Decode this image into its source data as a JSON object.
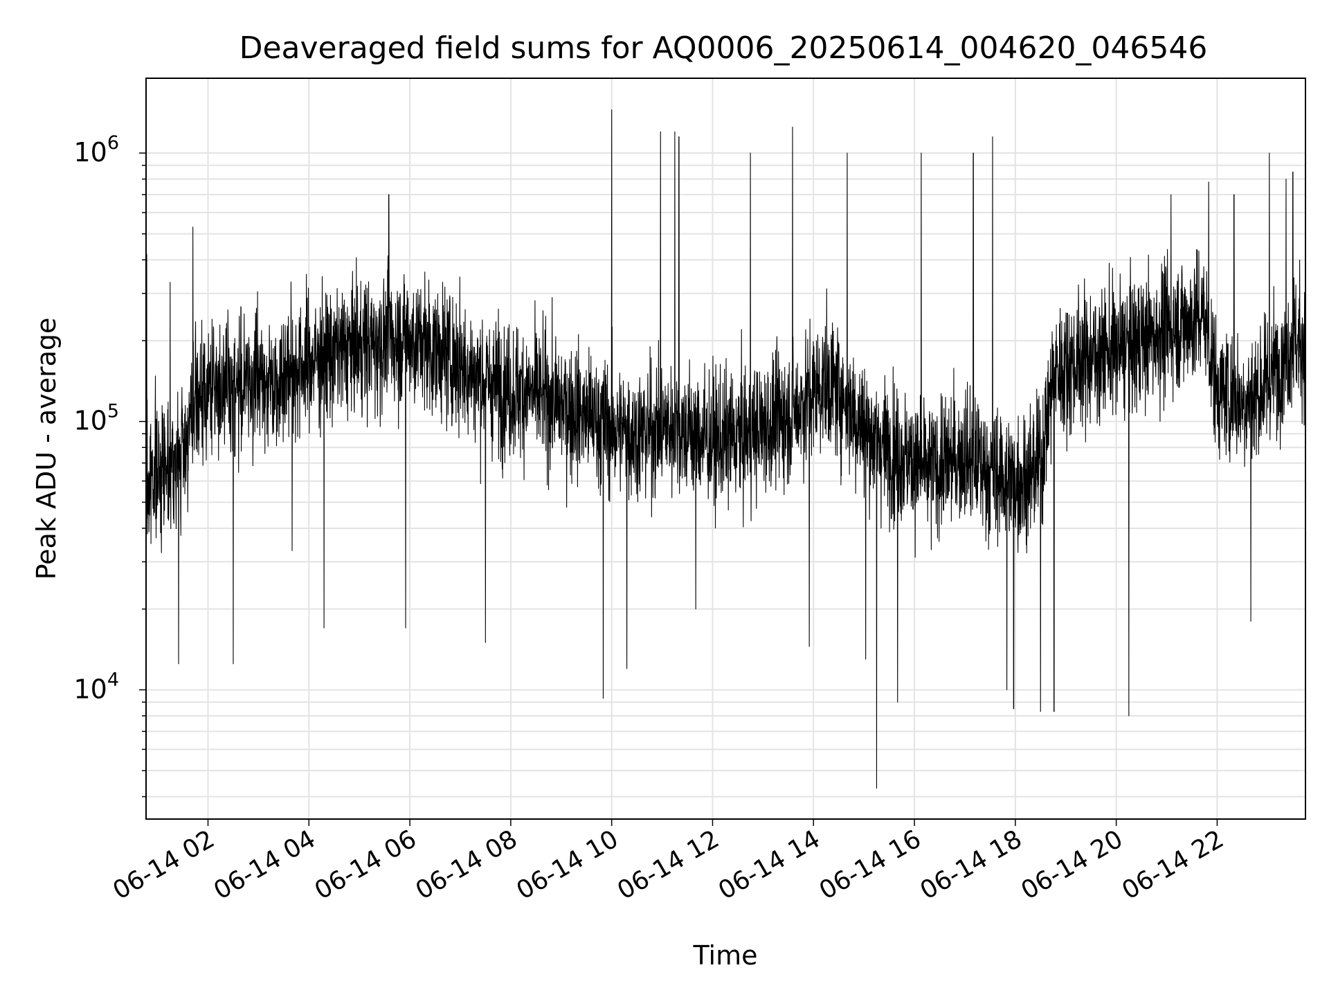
{
  "chart_data": {
    "type": "line",
    "title": "Deaveraged field sums for AQ0006_20250614_004620_046546",
    "xlabel": "Time",
    "ylabel": "Peak ADU - average",
    "yscale": "log",
    "ylim": [
      3300,
      1900000
    ],
    "xlim": [
      "2025-06-14 00:46:20",
      "2025-06-14 23:45:00"
    ],
    "grid": true,
    "line_color": "#000000",
    "x_ticks": [
      "06-14 02",
      "06-14 04",
      "06-14 06",
      "06-14 08",
      "06-14 10",
      "06-14 12",
      "06-14 14",
      "06-14 16",
      "06-14 18",
      "06-14 20",
      "06-14 22"
    ],
    "y_ticks": [
      {
        "value": 10000,
        "base": "10",
        "exp": "4"
      },
      {
        "value": 100000,
        "base": "10",
        "exp": "5"
      },
      {
        "value": 1000000,
        "base": "10",
        "exp": "6"
      }
    ],
    "series": [
      {
        "values": [
          [
            "2025-06-14 00:46",
            65000
          ],
          [
            "2025-06-14 00:50",
            55000
          ],
          [
            "2025-06-14 00:55",
            70000
          ],
          [
            "2025-06-14 01:00",
            60000
          ],
          [
            "2025-06-14 01:10",
            75000
          ],
          [
            "2025-06-14 01:20",
            65000
          ],
          [
            "2025-06-14 01:30",
            80000
          ],
          [
            "2025-06-14 01:40",
            100000
          ],
          [
            "2025-06-14 01:50",
            120000
          ],
          [
            "2025-06-14 02:00",
            130000
          ],
          [
            "2025-06-14 02:15",
            140000
          ],
          [
            "2025-06-14 02:30",
            135000
          ],
          [
            "2025-06-14 02:45",
            140000
          ],
          [
            "2025-06-14 03:00",
            145000
          ],
          [
            "2025-06-14 03:15",
            140000
          ],
          [
            "2025-06-14 03:30",
            150000
          ],
          [
            "2025-06-14 03:45",
            160000
          ],
          [
            "2025-06-14 04:00",
            165000
          ],
          [
            "2025-06-14 04:15",
            175000
          ],
          [
            "2025-06-14 04:30",
            180000
          ],
          [
            "2025-06-14 04:45",
            185000
          ],
          [
            "2025-06-14 05:00",
            190000
          ],
          [
            "2025-06-14 05:15",
            195000
          ],
          [
            "2025-06-14 05:30",
            200000
          ],
          [
            "2025-06-14 05:45",
            205000
          ],
          [
            "2025-06-14 06:00",
            205000
          ],
          [
            "2025-06-14 06:15",
            195000
          ],
          [
            "2025-06-14 06:30",
            185000
          ],
          [
            "2025-06-14 06:45",
            175000
          ],
          [
            "2025-06-14 07:00",
            165000
          ],
          [
            "2025-06-14 07:15",
            150000
          ],
          [
            "2025-06-14 07:30",
            140000
          ],
          [
            "2025-06-14 07:45",
            135000
          ],
          [
            "2025-06-14 08:00",
            130000
          ],
          [
            "2025-06-14 08:15",
            130000
          ],
          [
            "2025-06-14 08:30",
            125000
          ],
          [
            "2025-06-14 08:45",
            120000
          ],
          [
            "2025-06-14 09:00",
            115000
          ],
          [
            "2025-06-14 09:15",
            110000
          ],
          [
            "2025-06-14 09:30",
            105000
          ],
          [
            "2025-06-14 09:45",
            100000
          ],
          [
            "2025-06-14 10:00",
            95000
          ],
          [
            "2025-06-14 10:15",
            92000
          ],
          [
            "2025-06-14 10:30",
            90000
          ],
          [
            "2025-06-14 10:45",
            92000
          ],
          [
            "2025-06-14 11:00",
            95000
          ],
          [
            "2025-06-14 11:15",
            95000
          ],
          [
            "2025-06-14 11:30",
            92000
          ],
          [
            "2025-06-14 11:45",
            88000
          ],
          [
            "2025-06-14 12:00",
            85000
          ],
          [
            "2025-06-14 12:15",
            85000
          ],
          [
            "2025-06-14 12:30",
            88000
          ],
          [
            "2025-06-14 12:45",
            90000
          ],
          [
            "2025-06-14 13:00",
            95000
          ],
          [
            "2025-06-14 13:15",
            100000
          ],
          [
            "2025-06-14 13:30",
            105000
          ],
          [
            "2025-06-14 13:45",
            115000
          ],
          [
            "2025-06-14 14:00",
            130000
          ],
          [
            "2025-06-14 14:15",
            140000
          ],
          [
            "2025-06-14 14:30",
            130000
          ],
          [
            "2025-06-14 14:45",
            110000
          ],
          [
            "2025-06-14 15:00",
            95000
          ],
          [
            "2025-06-14 15:15",
            85000
          ],
          [
            "2025-06-14 15:30",
            80000
          ],
          [
            "2025-06-14 15:45",
            75000
          ],
          [
            "2025-06-14 16:00",
            70000
          ],
          [
            "2025-06-14 16:15",
            65000
          ],
          [
            "2025-06-14 16:30",
            68000
          ],
          [
            "2025-06-14 16:45",
            72000
          ],
          [
            "2025-06-14 17:00",
            75000
          ],
          [
            "2025-06-14 17:15",
            70000
          ],
          [
            "2025-06-14 17:30",
            65000
          ],
          [
            "2025-06-14 17:45",
            62000
          ],
          [
            "2025-06-14 18:00",
            60000
          ],
          [
            "2025-06-14 18:15",
            62000
          ],
          [
            "2025-06-14 18:30",
            70000
          ],
          [
            "2025-06-14 18:45",
            150000
          ],
          [
            "2025-06-14 19:00",
            160000
          ],
          [
            "2025-06-14 19:15",
            170000
          ],
          [
            "2025-06-14 19:30",
            175000
          ],
          [
            "2025-06-14 19:45",
            180000
          ],
          [
            "2025-06-14 20:00",
            185000
          ],
          [
            "2025-06-14 20:15",
            190000
          ],
          [
            "2025-06-14 20:30",
            200000
          ],
          [
            "2025-06-14 20:45",
            210000
          ],
          [
            "2025-06-14 21:00",
            220000
          ],
          [
            "2025-06-14 21:15",
            230000
          ],
          [
            "2025-06-14 21:30",
            240000
          ],
          [
            "2025-06-14 21:45",
            250000
          ],
          [
            "2025-06-14 22:00",
            130000
          ],
          [
            "2025-06-14 22:15",
            125000
          ],
          [
            "2025-06-14 22:30",
            120000
          ],
          [
            "2025-06-14 22:45",
            125000
          ],
          [
            "2025-06-14 23:00",
            140000
          ],
          [
            "2025-06-14 23:15",
            170000
          ],
          [
            "2025-06-14 23:30",
            200000
          ],
          [
            "2025-06-14 23:45",
            190000
          ]
        ],
        "spikes": [
          [
            "2025-06-14 00:47",
            420000
          ],
          [
            "2025-06-14 01:15",
            330000
          ],
          [
            "2025-06-14 01:25",
            12500
          ],
          [
            "2025-06-14 01:42",
            530000
          ],
          [
            "2025-06-14 02:30",
            12500
          ],
          [
            "2025-06-14 03:40",
            33000
          ],
          [
            "2025-06-14 04:18",
            17000
          ],
          [
            "2025-06-14 05:35",
            700000
          ],
          [
            "2025-06-14 05:55",
            17000
          ],
          [
            "2025-06-14 07:30",
            15000
          ],
          [
            "2025-06-14 09:50",
            9300
          ],
          [
            "2025-06-14 10:00",
            1450000
          ],
          [
            "2025-06-14 10:18",
            12000
          ],
          [
            "2025-06-14 10:58",
            1200000
          ],
          [
            "2025-06-14 11:15",
            1200000
          ],
          [
            "2025-06-14 11:20",
            1150000
          ],
          [
            "2025-06-14 11:40",
            20000
          ],
          [
            "2025-06-14 12:45",
            1000000
          ],
          [
            "2025-06-14 13:35",
            1250000
          ],
          [
            "2025-06-14 13:55",
            14500
          ],
          [
            "2025-06-14 14:40",
            1000000
          ],
          [
            "2025-06-14 15:02",
            13000
          ],
          [
            "2025-06-14 15:15",
            4300
          ],
          [
            "2025-06-14 15:40",
            9000
          ],
          [
            "2025-06-14 16:08",
            1000000
          ],
          [
            "2025-06-14 17:10",
            1000000
          ],
          [
            "2025-06-14 17:33",
            1150000
          ],
          [
            "2025-06-14 17:50",
            10000
          ],
          [
            "2025-06-14 17:58",
            8500
          ],
          [
            "2025-06-14 18:30",
            8300
          ],
          [
            "2025-06-14 18:46",
            8300
          ],
          [
            "2025-06-14 20:15",
            8000
          ],
          [
            "2025-06-14 21:05",
            700000
          ],
          [
            "2025-06-14 21:50",
            780000
          ],
          [
            "2025-06-14 22:20",
            700000
          ],
          [
            "2025-06-14 22:40",
            18000
          ],
          [
            "2025-06-14 23:02",
            1000000
          ],
          [
            "2025-06-14 23:22",
            800000
          ],
          [
            "2025-06-14 23:30",
            850000
          ]
        ]
      }
    ]
  }
}
